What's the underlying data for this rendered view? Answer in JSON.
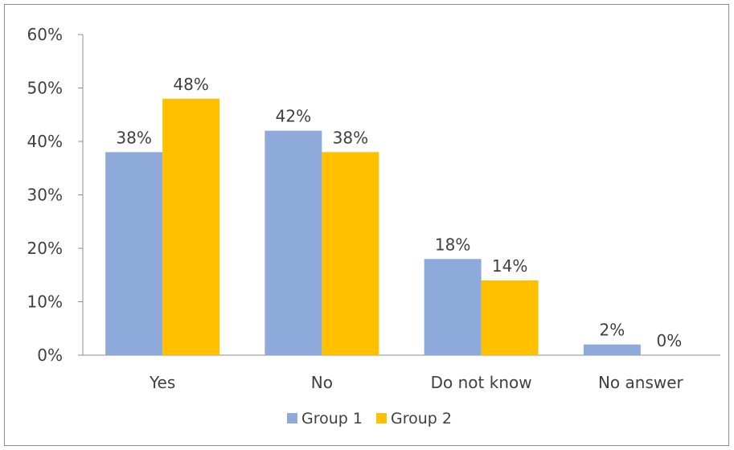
{
  "chart_data": {
    "type": "bar",
    "categories": [
      "Yes",
      "No",
      "Do not know",
      "No answer"
    ],
    "series": [
      {
        "name": "Group 1",
        "values": [
          38,
          42,
          18,
          2
        ],
        "labels": [
          "38%",
          "42%",
          "18%",
          "2%"
        ]
      },
      {
        "name": "Group 2",
        "values": [
          48,
          38,
          14,
          0
        ],
        "labels": [
          "48%",
          "38%",
          "14%",
          "0%"
        ]
      }
    ],
    "ylim": [
      0,
      60
    ],
    "yticks": [
      "0%",
      "10%",
      "20%",
      "30%",
      "40%",
      "50%",
      "60%"
    ],
    "grid": false,
    "legend_position": "bottom",
    "title": "",
    "xlabel": "",
    "ylabel": ""
  },
  "colors": {
    "Group 1": "#8eaadb",
    "Group 2": "#ffc000",
    "axis": "#8c8c8c",
    "text": "#404040"
  }
}
